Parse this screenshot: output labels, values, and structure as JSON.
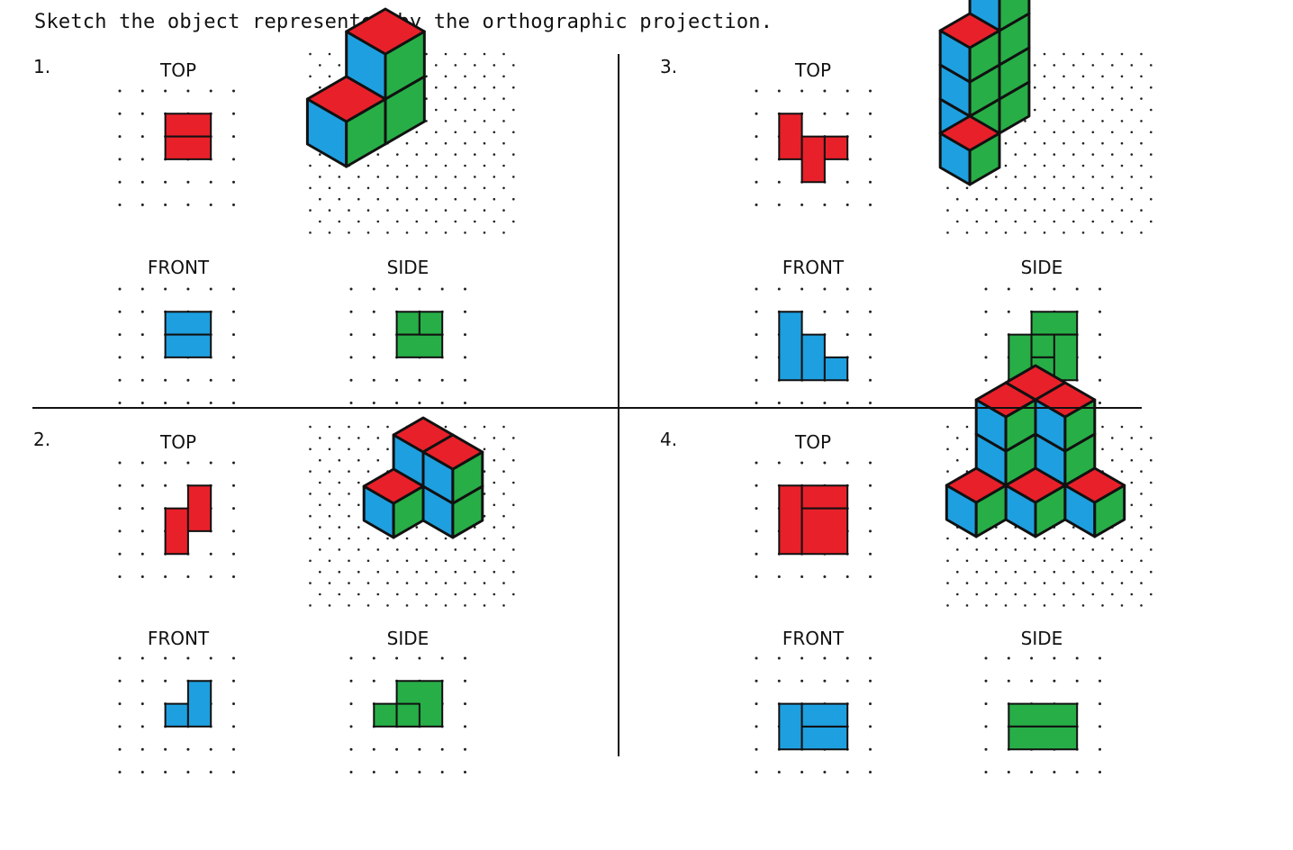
{
  "instruction": "Sketch the object represented by the orthographic projection.",
  "colors": {
    "top": "#e8202a",
    "front": "#1e9fe0",
    "side": "#27ae47",
    "outline": "#111111",
    "dot": "#222222"
  },
  "problems": [
    {
      "number": "1.",
      "top_label": "TOP",
      "front_label": "FRONT",
      "side_label": "SIDE"
    },
    {
      "number": "2.",
      "top_label": "TOP",
      "front_label": "FRONT",
      "side_label": "SIDE"
    },
    {
      "number": "3.",
      "top_label": "TOP",
      "front_label": "FRONT",
      "side_label": "SIDE"
    },
    {
      "number": "4.",
      "top_label": "TOP",
      "front_label": "FRONT",
      "side_label": "SIDE"
    }
  ]
}
